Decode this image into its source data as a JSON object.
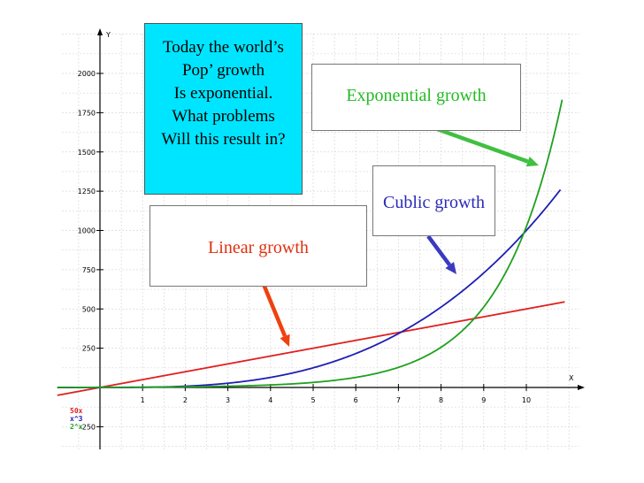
{
  "chart_data": {
    "type": "line",
    "xlabel": "X",
    "ylabel": "Y",
    "xlim": [
      -1,
      11
    ],
    "ylim": [
      -250,
      2250
    ],
    "grid": true,
    "x_ticks": [
      "1",
      "2",
      "3",
      "4",
      "5",
      "6",
      "7",
      "8",
      "9",
      "10"
    ],
    "y_ticks": [
      "-250",
      "250",
      "500",
      "750",
      "1000",
      "1250",
      "1500",
      "1750",
      "2000"
    ],
    "series": [
      {
        "name": "50x",
        "formula": "50x",
        "color": "#e02020",
        "x": [
          -1,
          0,
          2,
          4,
          6,
          8,
          10,
          10.9
        ],
        "values": [
          -50,
          0,
          100,
          200,
          300,
          400,
          500,
          545
        ]
      },
      {
        "name": "x^3",
        "formula": "x^3",
        "color": "#1e1eb4",
        "x": [
          0,
          2,
          4,
          6,
          7,
          8,
          9,
          10,
          10.8
        ],
        "values": [
          0,
          8,
          64,
          216,
          343,
          512,
          729,
          1000,
          1260
        ]
      },
      {
        "name": "2^x",
        "formula": "2^x",
        "color": "#20a020",
        "x": [
          -1,
          0,
          2,
          4,
          6,
          7,
          8,
          9,
          10,
          10.85
        ],
        "values": [
          0.5,
          1,
          4,
          16,
          64,
          128,
          256,
          512,
          1024,
          1845
        ]
      }
    ]
  },
  "annotations": {
    "question_lines": [
      "Today the world’s",
      "Pop’ growth",
      "Is exponential.",
      "What problems",
      "Will this result in?"
    ],
    "exponential_label": "Exponential growth",
    "cubic_label": "Cublic growth",
    "linear_label": "Linear growth"
  },
  "colors": {
    "linear": "#e02020",
    "cubic": "#1e1eb4",
    "exponential": "#20a020",
    "arrow_exponential": "#40c040",
    "arrow_cubic": "#3a3ac0",
    "arrow_linear": "#f04010",
    "question_bg": "#00e5ff"
  }
}
